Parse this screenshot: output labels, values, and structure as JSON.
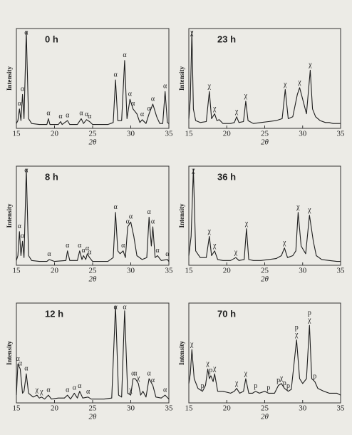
{
  "chart_data": [
    {
      "type": "line",
      "title": "0 h",
      "xlabel": "2θ",
      "ylabel": "Intensity",
      "xlim": [
        15,
        35
      ],
      "xticks": [
        15,
        20,
        25,
        30,
        35
      ],
      "ylim": [
        0,
        100
      ],
      "x": [
        15,
        15.2,
        15.4,
        15.6,
        15.8,
        16.0,
        16.3,
        16.6,
        17,
        18,
        19,
        19.2,
        19.4,
        20.5,
        20.8,
        21,
        21.7,
        22,
        23,
        23.5,
        23.8,
        24.2,
        24.6,
        25,
        26,
        27,
        27.7,
        28.0,
        28.3,
        28.8,
        29.2,
        29.5,
        29.9,
        30.3,
        30.8,
        31.2,
        31.5,
        32,
        32.4,
        32.9,
        33.4,
        33.8,
        34.2,
        34.5,
        34.8,
        35
      ],
      "values": [
        5,
        8,
        20,
        8,
        35,
        10,
        100,
        10,
        5,
        4,
        4,
        10,
        4,
        4,
        7,
        4,
        8,
        4,
        4,
        10,
        5,
        9,
        7,
        4,
        4,
        4,
        6,
        50,
        8,
        8,
        70,
        10,
        30,
        20,
        15,
        6,
        9,
        5,
        15,
        25,
        12,
        5,
        5,
        38,
        6,
        5
      ],
      "annotations": [
        {
          "text": "α",
          "x": 15.4
        },
        {
          "text": "α",
          "x": 15.8
        },
        {
          "text": "α",
          "x": 16.3
        },
        {
          "text": "α",
          "x": 19.2
        },
        {
          "text": "α",
          "x": 20.8
        },
        {
          "text": "α",
          "x": 21.7
        },
        {
          "text": "α",
          "x": 23.5
        },
        {
          "text": "α",
          "x": 24.2
        },
        {
          "text": "α",
          "x": 24.6
        },
        {
          "text": "α",
          "x": 28.0
        },
        {
          "text": "α",
          "x": 29.2
        },
        {
          "text": "α",
          "x": 29.9
        },
        {
          "text": "α",
          "x": 30.3
        },
        {
          "text": "α",
          "x": 31.5
        },
        {
          "text": "α",
          "x": 32.4
        },
        {
          "text": "α",
          "x": 32.9
        },
        {
          "text": "α",
          "x": 34.5
        }
      ]
    },
    {
      "type": "line",
      "title": "23 h",
      "xlabel": "2θ",
      "ylabel": "Intensity",
      "xlim": [
        15,
        35
      ],
      "xticks": [
        15,
        20,
        25,
        30,
        35
      ],
      "ylim": [
        0,
        100
      ],
      "x": [
        15,
        15.2,
        15.4,
        15.6,
        15.9,
        16.5,
        17.3,
        17.7,
        18.0,
        18.4,
        18.7,
        19.0,
        19.5,
        20.5,
        21.0,
        21.3,
        21.6,
        22.2,
        22.5,
        22.8,
        23.5,
        24.5,
        25.5,
        26.5,
        27.3,
        27.7,
        28.1,
        28.7,
        29.3,
        29.6,
        30.0,
        30.5,
        31.0,
        31.3,
        31.7,
        32.3,
        33,
        33.5,
        34,
        35
      ],
      "values": [
        10,
        30,
        100,
        20,
        8,
        6,
        7,
        38,
        10,
        15,
        8,
        9,
        5,
        5,
        6,
        12,
        6,
        7,
        28,
        8,
        5,
        6,
        7,
        8,
        10,
        40,
        10,
        12,
        35,
        42,
        30,
        15,
        60,
        20,
        12,
        8,
        6,
        6,
        5,
        5
      ],
      "annotations": [
        {
          "text": "χ",
          "x": 15.4
        },
        {
          "text": "χ",
          "x": 17.7
        },
        {
          "text": "χ",
          "x": 18.4
        },
        {
          "text": "χ",
          "x": 21.3
        },
        {
          "text": "χ",
          "x": 22.5
        },
        {
          "text": "χ",
          "x": 27.7
        },
        {
          "text": "χ",
          "x": 29.6
        },
        {
          "text": "χ",
          "x": 31.0
        }
      ]
    },
    {
      "type": "line",
      "title": "8 h",
      "xlabel": "2θ",
      "ylabel": "Intensity",
      "xlim": [
        15,
        35
      ],
      "xticks": [
        15,
        20,
        25,
        30,
        35
      ],
      "ylim": [
        0,
        100
      ],
      "x": [
        15,
        15.2,
        15.4,
        15.6,
        15.8,
        16.0,
        16.3,
        16.6,
        17,
        18,
        19,
        19.3,
        20,
        21.5,
        21.7,
        22,
        23,
        23.3,
        23.6,
        23.8,
        24.1,
        24.3,
        24.6,
        25,
        26,
        27,
        27.7,
        28.0,
        28.3,
        28.6,
        29.0,
        29.3,
        29.6,
        30.0,
        30.4,
        30.8,
        31.5,
        32.1,
        32.4,
        32.7,
        32.9,
        33.2,
        33.5,
        34,
        34.8,
        35
      ],
      "values": [
        5,
        10,
        35,
        10,
        25,
        8,
        100,
        10,
        5,
        4,
        4,
        6,
        4,
        5,
        15,
        5,
        5,
        15,
        6,
        10,
        6,
        12,
        8,
        4,
        4,
        4,
        8,
        55,
        15,
        12,
        15,
        8,
        40,
        45,
        30,
        10,
        6,
        8,
        50,
        20,
        40,
        8,
        10,
        5,
        6,
        4
      ],
      "annotations": [
        {
          "text": "α",
          "x": 15.4
        },
        {
          "text": "α",
          "x": 15.8
        },
        {
          "text": "α",
          "x": 16.3
        },
        {
          "text": "α",
          "x": 19.3
        },
        {
          "text": "α",
          "x": 21.7
        },
        {
          "text": "α",
          "x": 23.3
        },
        {
          "text": "α",
          "x": 23.8
        },
        {
          "text": "α",
          "x": 24.3
        },
        {
          "text": "α",
          "x": 24.6
        },
        {
          "text": "α",
          "x": 28.0
        },
        {
          "text": "α",
          "x": 29.0
        },
        {
          "text": "α",
          "x": 29.6
        },
        {
          "text": "α",
          "x": 30.0
        },
        {
          "text": "α",
          "x": 32.4
        },
        {
          "text": "α",
          "x": 32.9
        },
        {
          "text": "α",
          "x": 33.5
        },
        {
          "text": "α",
          "x": 34.8
        }
      ]
    },
    {
      "type": "line",
      "title": "36 h",
      "xlabel": "2θ",
      "ylabel": "Intensity",
      "xlim": [
        15,
        35
      ],
      "xticks": [
        15,
        20,
        25,
        30,
        35
      ],
      "ylim": [
        0,
        100
      ],
      "x": [
        15,
        15.3,
        15.6,
        15.9,
        16.5,
        17.3,
        17.7,
        18.0,
        18.4,
        18.8,
        19.5,
        20.5,
        21.2,
        21.6,
        22.3,
        22.6,
        22.9,
        23.5,
        24.5,
        25.5,
        26.5,
        27.2,
        27.6,
        28.0,
        28.7,
        29.1,
        29.4,
        29.8,
        30.4,
        30.9,
        31.4,
        31.8,
        32.5,
        33.5,
        34.5,
        35
      ],
      "values": [
        10,
        30,
        100,
        15,
        8,
        8,
        30,
        10,
        15,
        6,
        5,
        5,
        8,
        5,
        6,
        38,
        6,
        5,
        5,
        6,
        7,
        10,
        18,
        8,
        10,
        15,
        55,
        20,
        12,
        52,
        25,
        10,
        6,
        5,
        4,
        4
      ],
      "annotations": [
        {
          "text": "χ",
          "x": 15.6
        },
        {
          "text": "χ",
          "x": 17.7
        },
        {
          "text": "χ",
          "x": 18.4
        },
        {
          "text": "χ",
          "x": 21.2
        },
        {
          "text": "χ",
          "x": 22.6
        },
        {
          "text": "χ",
          "x": 27.6
        },
        {
          "text": "χ",
          "x": 29.4
        },
        {
          "text": "χ",
          "x": 30.9
        }
      ]
    },
    {
      "type": "line",
      "title": "12 h",
      "xlabel": "2θ",
      "ylabel": "Intensity",
      "xlim": [
        15,
        35
      ],
      "xticks": [
        15,
        20,
        25,
        30,
        35
      ],
      "ylim": [
        0,
        100
      ],
      "x": [
        15,
        15.2,
        15.5,
        15.8,
        16.0,
        16.3,
        16.6,
        17.2,
        17.7,
        18.0,
        18.3,
        18.7,
        19.2,
        19.6,
        20.5,
        21.3,
        21.7,
        22.1,
        22.6,
        23.0,
        23.3,
        23.7,
        24.4,
        24.8,
        25.5,
        26.5,
        27.5,
        28.0,
        28.4,
        28.8,
        29.2,
        29.6,
        30.0,
        30.3,
        30.6,
        31.0,
        31.3,
        31.6,
        32.0,
        32.4,
        32.9,
        33.3,
        34,
        34.5,
        35
      ],
      "values": [
        8,
        40,
        35,
        10,
        12,
        30,
        10,
        6,
        8,
        5,
        6,
        4,
        8,
        4,
        5,
        5,
        8,
        4,
        10,
        5,
        12,
        5,
        6,
        4,
        4,
        4,
        5,
        100,
        8,
        6,
        95,
        10,
        8,
        25,
        25,
        20,
        8,
        12,
        6,
        25,
        18,
        6,
        5,
        8,
        4
      ],
      "annotations": [
        {
          "text": "α",
          "x": 15.2
        },
        {
          "text": "α",
          "x": 15.5
        },
        {
          "text": "α",
          "x": 16.3
        },
        {
          "text": "χ",
          "x": 17.7
        },
        {
          "text": "χ",
          "x": 18.3
        },
        {
          "text": "α",
          "x": 19.2
        },
        {
          "text": "α",
          "x": 21.7
        },
        {
          "text": "α",
          "x": 22.6
        },
        {
          "text": "α",
          "x": 23.3
        },
        {
          "text": "α",
          "x": 24.4
        },
        {
          "text": "α",
          "x": 28.0
        },
        {
          "text": "α",
          "x": 29.2
        },
        {
          "text": "χ",
          "x": 30.0
        },
        {
          "text": "α",
          "x": 30.3
        },
        {
          "text": "α",
          "x": 30.6
        },
        {
          "text": "χ",
          "x": 31.0
        },
        {
          "text": "α",
          "x": 32.4
        },
        {
          "text": "α",
          "x": 32.9
        },
        {
          "text": "α",
          "x": 34.5
        }
      ]
    },
    {
      "type": "line",
      "title": "70 h",
      "xlabel": "2θ",
      "ylabel": "Intensity",
      "xlim": [
        15,
        35
      ],
      "xticks": [
        15,
        20,
        25,
        30,
        35
      ],
      "ylim": [
        0,
        100
      ],
      "x": [
        15,
        15.2,
        15.4,
        15.7,
        16.2,
        16.8,
        17.2,
        17.5,
        17.7,
        17.9,
        18.2,
        18.4,
        18.8,
        19.5,
        20.5,
        21.0,
        21.3,
        21.7,
        22.2,
        22.5,
        22.9,
        23.4,
        23.8,
        24.3,
        25.0,
        25.5,
        26.3,
        26.8,
        27.2,
        27.6,
        28.1,
        28.5,
        29.2,
        29.6,
        30.0,
        30.5,
        30.9,
        31.2,
        31.6,
        32.0,
        32.8,
        33.5,
        34.5,
        35
      ],
      "values": [
        20,
        30,
        55,
        25,
        15,
        12,
        18,
        35,
        25,
        28,
        22,
        30,
        12,
        12,
        10,
        12,
        15,
        10,
        12,
        25,
        10,
        10,
        12,
        10,
        12,
        10,
        10,
        18,
        20,
        15,
        12,
        14,
        65,
        25,
        20,
        25,
        80,
        25,
        22,
        15,
        12,
        10,
        10,
        8
      ],
      "annotations": [
        {
          "text": "χ",
          "x": 15.4
        },
        {
          "text": "p",
          "x": 16.8
        },
        {
          "text": "χ",
          "x": 17.5
        },
        {
          "text": "p",
          "x": 17.9
        },
        {
          "text": "χ",
          "x": 18.4
        },
        {
          "text": "χ",
          "x": 21.3
        },
        {
          "text": "χ",
          "x": 22.5
        },
        {
          "text": "p",
          "x": 23.8
        },
        {
          "text": "p",
          "x": 25.5
        },
        {
          "text": "p",
          "x": 26.8
        },
        {
          "text": "χ",
          "x": 27.2
        },
        {
          "text": "p",
          "x": 27.6
        },
        {
          "text": "p",
          "x": 28.1
        },
        {
          "text": "χ",
          "x": 29.2
        },
        {
          "text": "p",
          "x": 29.2
        },
        {
          "text": "χ",
          "x": 30.9
        },
        {
          "text": "p",
          "x": 30.9
        },
        {
          "text": "p",
          "x": 31.6
        }
      ]
    }
  ]
}
